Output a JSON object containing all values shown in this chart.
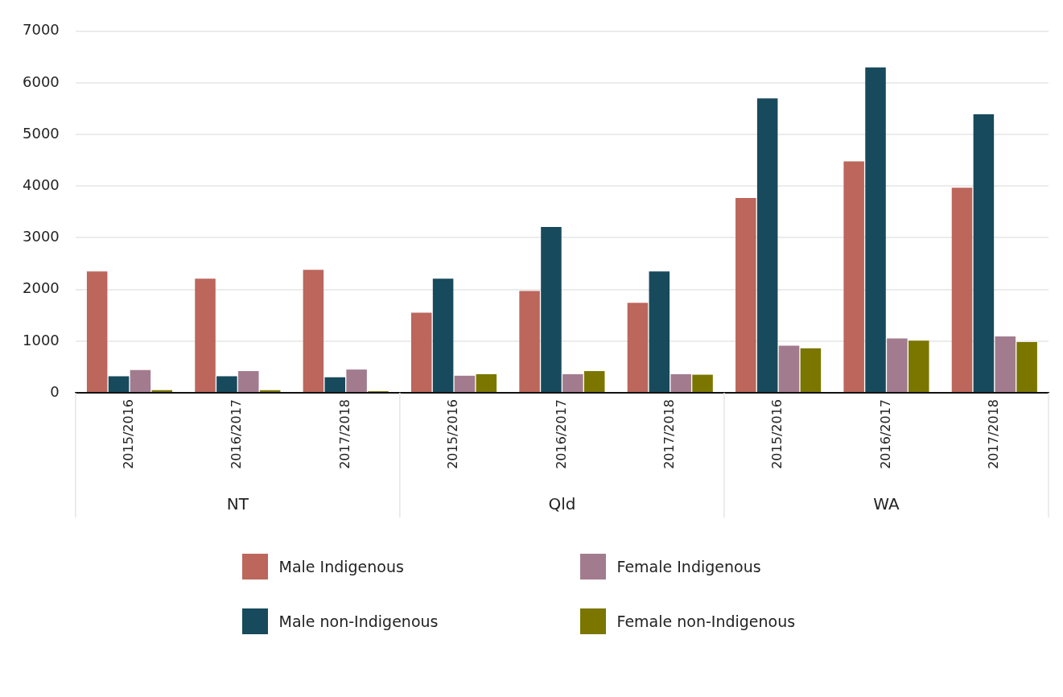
{
  "chart_data": {
    "type": "bar",
    "categories": [
      "2015/2016",
      "2016/2017",
      "2017/2018",
      "2015/2016",
      "2016/2017",
      "2017/2018",
      "2015/2016",
      "2016/2017",
      "2017/2018"
    ],
    "annotations": [
      "NT",
      "Qld",
      "WA"
    ],
    "series": [
      {
        "name": "Male Indigenous",
        "color": "#bc665c",
        "values": [
          2350,
          2210,
          2380,
          1550,
          1970,
          1740,
          3770,
          4480,
          3970
        ]
      },
      {
        "name": "Male non-Indigenous",
        "color": "#174a5c",
        "values": [
          320,
          320,
          300,
          2210,
          3210,
          2350,
          5700,
          6300,
          5390
        ]
      },
      {
        "name": "Female Indigenous",
        "color": "#a27c8e",
        "values": [
          440,
          420,
          450,
          330,
          360,
          360,
          910,
          1050,
          1090
        ]
      },
      {
        "name": "Female non-Indigenous",
        "color": "#7a7600",
        "values": [
          50,
          50,
          30,
          360,
          420,
          350,
          860,
          1010,
          980
        ]
      }
    ],
    "ylim": [
      0,
      7000
    ],
    "yticks": [
      0,
      1000,
      2000,
      3000,
      4000,
      5000,
      6000,
      7000
    ],
    "grid": "y",
    "legend": "bottom"
  }
}
